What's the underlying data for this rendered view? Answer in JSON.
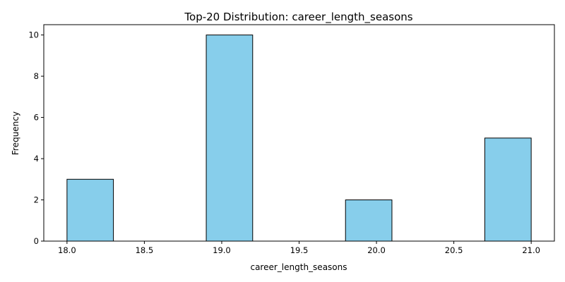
{
  "chart_data": {
    "type": "bar",
    "title": "Top-20 Distribution: career_length_seasons",
    "xlabel": "career_length_seasons",
    "ylabel": "Frequency",
    "xlim": [
      17.85,
      21.15
    ],
    "ylim": [
      0,
      10.5
    ],
    "bin_width": 0.3,
    "bins": [
      {
        "start": 18.0,
        "end": 18.3,
        "value": 3
      },
      {
        "start": 18.3,
        "end": 18.6,
        "value": 0
      },
      {
        "start": 18.6,
        "end": 18.9,
        "value": 0
      },
      {
        "start": 18.9,
        "end": 19.2,
        "value": 10
      },
      {
        "start": 19.2,
        "end": 19.5,
        "value": 0
      },
      {
        "start": 19.5,
        "end": 19.8,
        "value": 0
      },
      {
        "start": 19.8,
        "end": 20.1,
        "value": 2
      },
      {
        "start": 20.1,
        "end": 20.4,
        "value": 0
      },
      {
        "start": 20.4,
        "end": 20.7,
        "value": 0
      },
      {
        "start": 20.7,
        "end": 21.0,
        "value": 5
      }
    ],
    "xticks": [
      "18.0",
      "18.5",
      "19.0",
      "19.5",
      "20.0",
      "20.5",
      "21.0"
    ],
    "xtick_values": [
      18.0,
      18.5,
      19.0,
      19.5,
      20.0,
      20.5,
      21.0
    ],
    "yticks": [
      "0",
      "2",
      "4",
      "6",
      "8",
      "10"
    ],
    "ytick_values": [
      0,
      2,
      4,
      6,
      8,
      10
    ],
    "grid": false,
    "colors": {
      "bar_fill": "#87CEEB",
      "bar_edge": "#000000"
    }
  }
}
